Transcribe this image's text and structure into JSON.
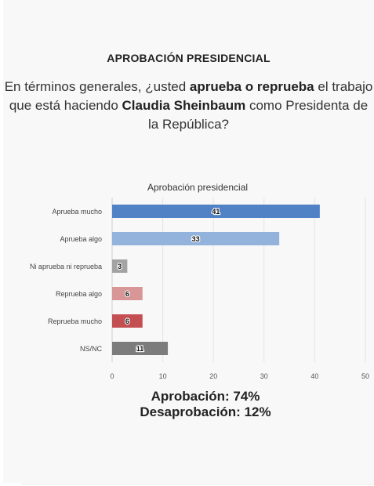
{
  "header": {
    "title": "APROBACIÓN PRESIDENCIAL"
  },
  "question": {
    "part1": "En términos generales, ¿usted ",
    "bold1": "aprueba o reprueba",
    "part2": " el trabajo que está haciendo ",
    "bold2": "Claudia Sheinbaum",
    "part3": " como Presidenta de la República?"
  },
  "chart_data": {
    "type": "bar",
    "orientation": "horizontal",
    "title": "Aprobación presidencial",
    "categories": [
      "Aprueba mucho",
      "Aprueba algo",
      "Ni aprueba ni reprueba",
      "Reprueba algo",
      "Reprueba mucho",
      "NS/NC"
    ],
    "values": [
      41,
      33,
      3,
      6,
      6,
      11
    ],
    "data_labels": [
      "41",
      "33",
      "3",
      "6",
      "6",
      "11"
    ],
    "colors": [
      "#5282c6",
      "#94b3dc",
      "#a3a3a3",
      "#d89697",
      "#c44f52",
      "#7c7c7c"
    ],
    "xlim": [
      0,
      50
    ],
    "xticks": [
      "0",
      "10",
      "20",
      "30",
      "40",
      "50"
    ],
    "grid": true,
    "legend": "none"
  },
  "summary": {
    "approval": "Aprobación: 74%",
    "disapproval": "Desaprobación: 12%"
  }
}
